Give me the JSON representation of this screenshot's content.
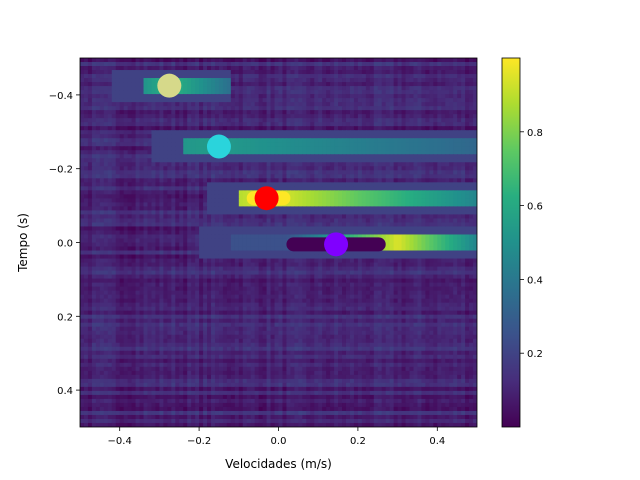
{
  "chart_data": {
    "type": "heatmap",
    "title": "",
    "xlabel": "Velocidades (m/s)",
    "ylabel": "Tempo (s)",
    "xlim": [
      -0.5,
      0.5
    ],
    "ylim": [
      0.5,
      -0.5
    ],
    "y_inverted": true,
    "xticks": [
      -0.4,
      -0.2,
      0.0,
      0.2,
      0.4
    ],
    "xtick_labels": [
      "−0.4",
      "−0.2",
      "0.0",
      "0.2",
      "0.4"
    ],
    "yticks": [
      -0.4,
      -0.2,
      0.0,
      0.2,
      0.4
    ],
    "ytick_labels": [
      "−0.4",
      "−0.2",
      "0.0",
      "0.2",
      "0.4"
    ],
    "colormap": "viridis",
    "colorbar": {
      "range": [
        0.0,
        1.0
      ],
      "ticks": [
        0.2,
        0.4,
        0.6,
        0.8
      ],
      "tick_labels": [
        "0.2",
        "0.4",
        "0.6",
        "0.8"
      ]
    },
    "bright_bands": [
      {
        "time": -0.425,
        "v_start": -0.34,
        "v_end": -0.12,
        "peak_v": -0.27,
        "peak": 0.65
      },
      {
        "time": -0.26,
        "v_start": -0.24,
        "v_end": 0.5,
        "peak_v": -0.17,
        "peak": 0.55
      },
      {
        "time": -0.12,
        "v_start": -0.1,
        "v_end": 0.5,
        "peak_v": -0.02,
        "peak": 0.97
      },
      {
        "time": 0.0,
        "v_start": -0.12,
        "v_end": 0.5,
        "peak_v": 0.3,
        "peak": 0.95
      }
    ],
    "trails": [
      {
        "color": "#440154",
        "v_start": 0.02,
        "v_end": 0.27,
        "time": 0.005
      },
      {
        "color": "#fde725",
        "v_start": -0.08,
        "v_end": 0.03,
        "time": -0.12
      }
    ],
    "markers": [
      {
        "velocity": -0.275,
        "time": -0.425,
        "color": "#d6d98a"
      },
      {
        "velocity": -0.15,
        "time": -0.26,
        "color": "#2ad4dc"
      },
      {
        "velocity": -0.03,
        "time": -0.12,
        "color": "#ff0000"
      },
      {
        "velocity": 0.145,
        "time": 0.005,
        "color": "#8000ff"
      }
    ],
    "grid": false,
    "legend": "none"
  }
}
